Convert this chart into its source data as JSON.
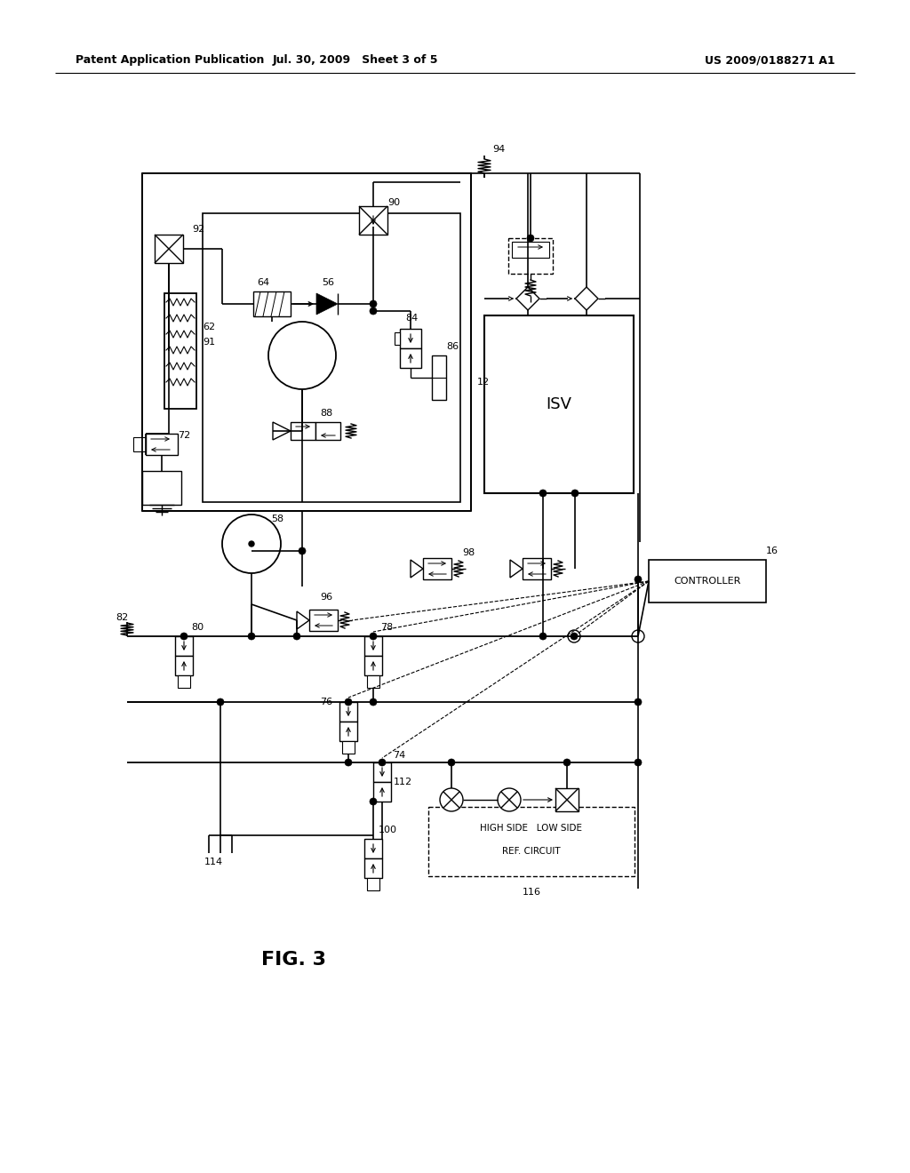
{
  "bg_color": "#ffffff",
  "title_left": "Patent Application Publication",
  "title_center": "Jul. 30, 2009   Sheet 3 of 5",
  "title_right": "US 2009/0188271 A1",
  "fig_label": "FIG. 3",
  "line_color": "#000000"
}
